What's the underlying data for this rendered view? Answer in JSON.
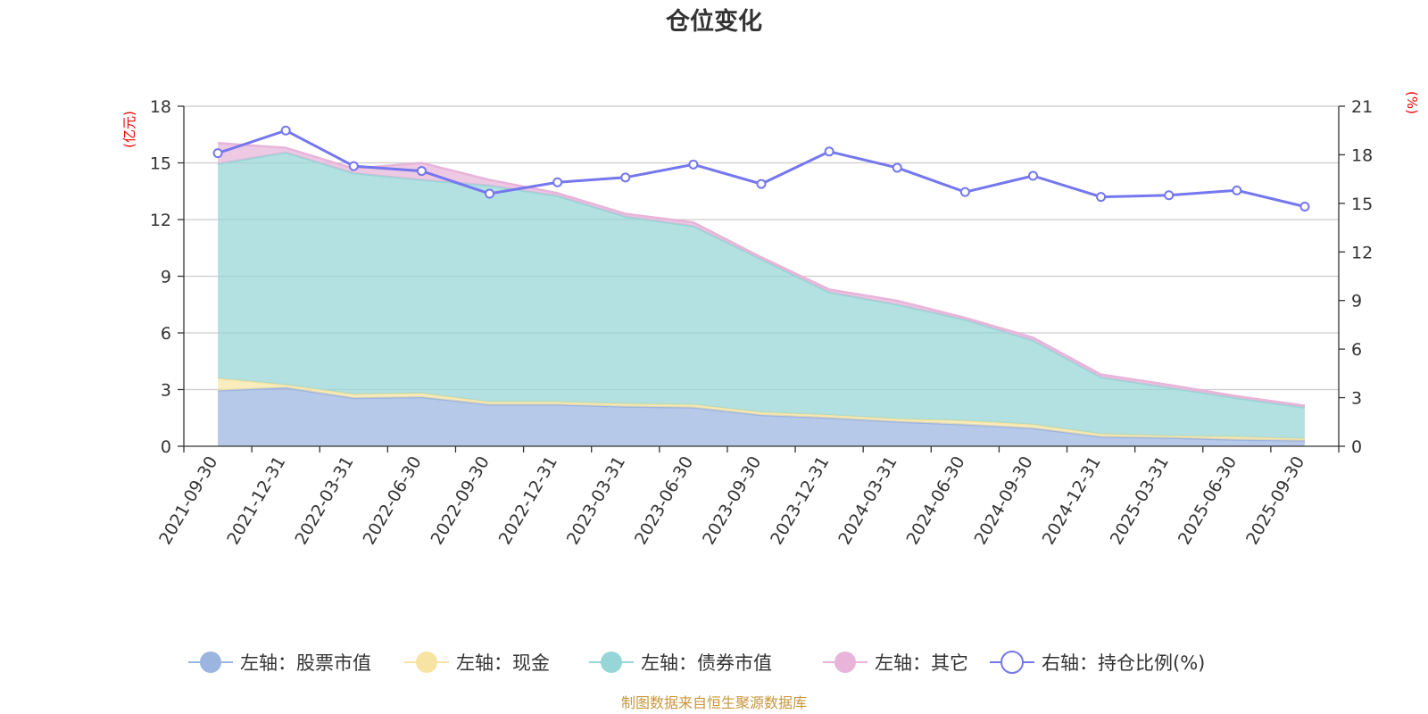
{
  "chart_data": {
    "type": "area",
    "title": "仓位变化",
    "left_unit": "(亿元)",
    "right_unit": "(%)",
    "categories": [
      "2021-09-30",
      "2021-12-31",
      "2022-03-31",
      "2022-06-30",
      "2022-09-30",
      "2022-12-31",
      "2023-03-31",
      "2023-06-30",
      "2023-09-30",
      "2023-12-31",
      "2024-03-31",
      "2024-06-30",
      "2024-09-30",
      "2024-12-31",
      "2025-03-31",
      "2025-06-30",
      "2025-09-30"
    ],
    "left_axis": {
      "min": 0,
      "max": 18,
      "ticks": [
        0,
        3,
        6,
        9,
        12,
        15,
        18
      ]
    },
    "right_axis": {
      "min": 0,
      "max": 21,
      "ticks": [
        0,
        3,
        6,
        9,
        12,
        15,
        18,
        21
      ]
    },
    "stacked_series": [
      {
        "name": "左轴：股票市值",
        "color": "#9bb4e0",
        "values": [
          2.95,
          3.1,
          2.55,
          2.6,
          2.2,
          2.2,
          2.1,
          2.05,
          1.65,
          1.5,
          1.3,
          1.15,
          0.95,
          0.5,
          0.45,
          0.35,
          0.3
        ]
      },
      {
        "name": "左轴：现金",
        "color": "#f7e4a3",
        "values": [
          0.65,
          0.15,
          0.2,
          0.2,
          0.15,
          0.15,
          0.15,
          0.15,
          0.15,
          0.15,
          0.15,
          0.2,
          0.2,
          0.15,
          0.1,
          0.15,
          0.1
        ]
      },
      {
        "name": "左轴：债券市值",
        "color": "#96d6d6",
        "values": [
          11.35,
          12.3,
          11.7,
          11.3,
          11.45,
          10.9,
          9.9,
          9.45,
          8.1,
          6.5,
          6.05,
          5.35,
          4.45,
          3.0,
          2.55,
          2.05,
          1.65
        ]
      },
      {
        "name": "左轴：其它",
        "color": "#e8b4da",
        "values": [
          1.1,
          0.25,
          0.25,
          0.9,
          0.3,
          0.15,
          0.15,
          0.2,
          0.1,
          0.15,
          0.2,
          0.1,
          0.15,
          0.15,
          0.15,
          0.1,
          0.1
        ]
      }
    ],
    "line_series": {
      "name": "右轴：持仓比例(%)",
      "color": "#7477ee",
      "values": [
        18.1,
        19.5,
        17.3,
        17.0,
        15.6,
        16.3,
        16.6,
        17.4,
        16.2,
        18.2,
        17.2,
        15.7,
        16.7,
        15.4,
        15.5,
        15.8,
        14.8
      ]
    },
    "legend_position": "bottom",
    "grid": true
  },
  "footer": {
    "source": "制图数据来自恒生聚源数据库"
  }
}
